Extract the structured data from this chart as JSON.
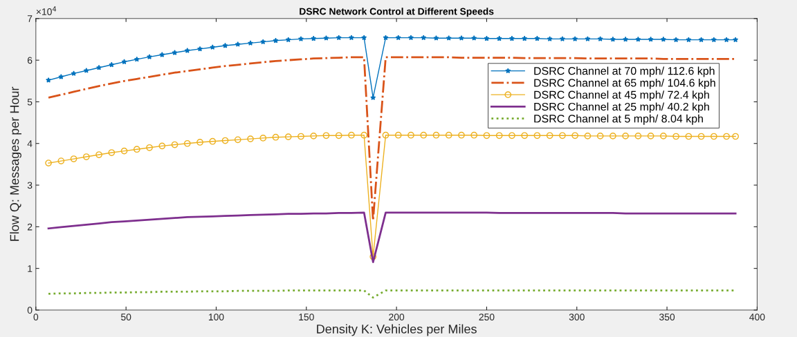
{
  "chart_data": {
    "type": "line",
    "title": "DSRC Network Control at Different Speeds",
    "xlabel": "Density K: Vehicles per Miles",
    "ylabel": "Flow Q: Messages per Hour",
    "annotations": [
      "×10$^{4}$"
    ],
    "x": [
      7,
      14,
      21,
      28,
      35,
      42,
      49,
      56,
      63,
      70,
      77,
      84,
      91,
      98,
      105,
      112,
      119,
      126,
      133,
      140,
      147,
      154,
      161,
      168,
      175,
      182,
      187,
      194,
      201,
      208,
      215,
      222,
      229,
      236,
      243,
      250,
      257,
      264,
      271,
      278,
      285,
      292,
      299,
      306,
      313,
      320,
      327,
      334,
      341,
      348,
      355,
      362,
      369,
      376,
      383,
      388
    ],
    "series": [
      {
        "name": "DSRC Channel at 70 mph/ 112.6 kph",
        "color": "#0072bd",
        "marker": "star",
        "line_style": "solid",
        "values": [
          5.52,
          5.6,
          5.68,
          5.75,
          5.82,
          5.89,
          5.96,
          6.02,
          6.08,
          6.13,
          6.18,
          6.23,
          6.27,
          6.31,
          6.35,
          6.38,
          6.41,
          6.44,
          6.47,
          6.49,
          6.51,
          6.52,
          6.53,
          6.54,
          6.54,
          6.54,
          5.1,
          6.54,
          6.54,
          6.54,
          6.54,
          6.53,
          6.53,
          6.53,
          6.53,
          6.52,
          6.52,
          6.52,
          6.52,
          6.52,
          6.51,
          6.51,
          6.51,
          6.51,
          6.51,
          6.5,
          6.5,
          6.5,
          6.5,
          6.5,
          6.49,
          6.49,
          6.49,
          6.49,
          6.49,
          6.49
        ]
      },
      {
        "name": "DSRC Channel at 65 mph/ 104.6 kph",
        "color": "#d95319",
        "marker": "none",
        "line_style": "dashdot",
        "values": [
          5.1,
          5.17,
          5.24,
          5.31,
          5.38,
          5.44,
          5.5,
          5.55,
          5.6,
          5.65,
          5.7,
          5.74,
          5.78,
          5.82,
          5.86,
          5.89,
          5.92,
          5.95,
          5.98,
          6.0,
          6.02,
          6.04,
          6.05,
          6.06,
          6.07,
          6.07,
          2.15,
          6.07,
          6.07,
          6.07,
          6.07,
          6.07,
          6.07,
          6.06,
          6.06,
          6.06,
          6.06,
          6.06,
          6.05,
          6.05,
          6.05,
          6.05,
          6.05,
          6.04,
          6.04,
          6.04,
          6.04,
          6.04,
          6.04,
          6.03,
          6.03,
          6.03,
          6.03,
          6.03,
          6.03,
          6.03
        ]
      },
      {
        "name": "DSRC Channel at 45 mph/ 72.4 kph",
        "color": "#edb120",
        "marker": "circle",
        "line_style": "solid",
        "values": [
          3.53,
          3.58,
          3.63,
          3.68,
          3.73,
          3.78,
          3.82,
          3.86,
          3.9,
          3.94,
          3.97,
          4.0,
          4.03,
          4.05,
          4.07,
          4.09,
          4.11,
          4.13,
          4.15,
          4.16,
          4.17,
          4.18,
          4.19,
          4.19,
          4.2,
          4.2,
          1.28,
          4.2,
          4.2,
          4.2,
          4.2,
          4.2,
          4.2,
          4.2,
          4.2,
          4.19,
          4.19,
          4.19,
          4.19,
          4.19,
          4.19,
          4.19,
          4.19,
          4.18,
          4.18,
          4.18,
          4.18,
          4.18,
          4.18,
          4.18,
          4.17,
          4.17,
          4.17,
          4.17,
          4.17,
          4.17
        ]
      },
      {
        "name": "DSRC Channel at 25 mph/ 40.2 kph",
        "color": "#7e2f8e",
        "marker": "none",
        "line_style": "solid",
        "values": [
          1.96,
          1.99,
          2.02,
          2.05,
          2.08,
          2.11,
          2.13,
          2.15,
          2.17,
          2.19,
          2.21,
          2.23,
          2.24,
          2.25,
          2.26,
          2.27,
          2.28,
          2.29,
          2.3,
          2.31,
          2.31,
          2.32,
          2.32,
          2.33,
          2.33,
          2.34,
          1.15,
          2.34,
          2.34,
          2.34,
          2.34,
          2.34,
          2.34,
          2.34,
          2.34,
          2.34,
          2.33,
          2.33,
          2.33,
          2.33,
          2.33,
          2.33,
          2.33,
          2.33,
          2.33,
          2.33,
          2.32,
          2.32,
          2.32,
          2.32,
          2.32,
          2.32,
          2.32,
          2.32,
          2.32,
          2.32
        ]
      },
      {
        "name": "DSRC Channel at 5 mph/ 8.04 kph",
        "color": "#77ac30",
        "marker": "none",
        "line_style": "dotted",
        "values": [
          0.39,
          0.4,
          0.4,
          0.41,
          0.41,
          0.42,
          0.42,
          0.43,
          0.43,
          0.44,
          0.44,
          0.44,
          0.45,
          0.45,
          0.45,
          0.46,
          0.46,
          0.46,
          0.46,
          0.47,
          0.47,
          0.47,
          0.47,
          0.47,
          0.47,
          0.47,
          0.3,
          0.47,
          0.47,
          0.47,
          0.47,
          0.47,
          0.47,
          0.47,
          0.47,
          0.47,
          0.47,
          0.47,
          0.47,
          0.47,
          0.47,
          0.47,
          0.47,
          0.47,
          0.47,
          0.47,
          0.47,
          0.47,
          0.47,
          0.47,
          0.47,
          0.47,
          0.47,
          0.47,
          0.47,
          0.47
        ]
      }
    ],
    "xlim": [
      0,
      400
    ],
    "xticks": [
      0,
      50,
      100,
      150,
      200,
      250,
      300,
      350,
      400
    ],
    "ylim": [
      0,
      7
    ],
    "yticks": [
      0,
      1,
      2,
      3,
      4,
      5,
      6,
      7
    ],
    "grid": false,
    "legend": "top right"
  }
}
